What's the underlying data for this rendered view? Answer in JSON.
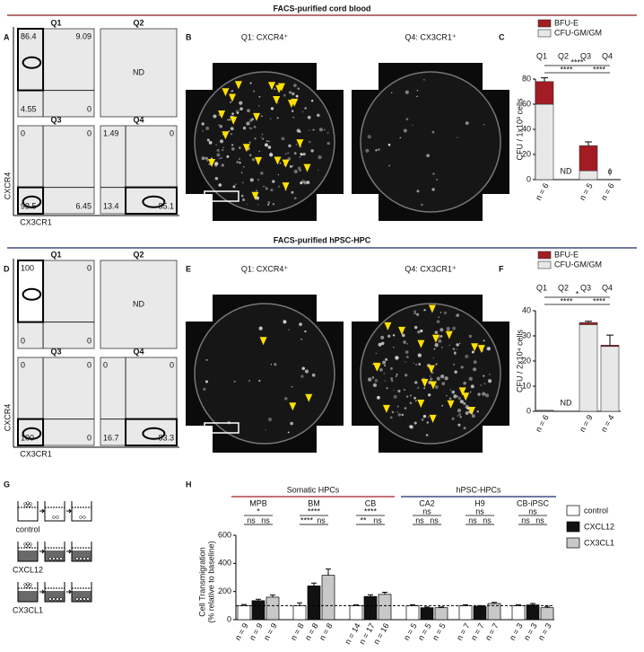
{
  "sections": [
    {
      "title": "FACS-purified cord blood",
      "color": "#8b1a1a"
    },
    {
      "title": "FACS-purified hPSC-HPC",
      "color": "#1f2a6b"
    }
  ],
  "panel_labels": [
    "A",
    "B",
    "C",
    "D",
    "E",
    "F",
    "G",
    "H"
  ],
  "facs": [
    {
      "y_label": "CXCR4",
      "x_label": "CX3CR1",
      "quadrants": [
        {
          "name": "Q1",
          "values": [
            86.4,
            9.09,
            4.55,
            0
          ]
        },
        {
          "name": "Q2",
          "note": "ND"
        },
        {
          "name": "Q3",
          "values": [
            0,
            0,
            93.5,
            6.45
          ]
        },
        {
          "name": "Q4",
          "values": [
            1.49,
            0,
            13.4,
            85.1
          ]
        }
      ]
    },
    {
      "y_label": "CXCR4",
      "x_label": "CX3CR1",
      "quadrants": [
        {
          "name": "Q1",
          "values": [
            100,
            0,
            0,
            0
          ]
        },
        {
          "name": "Q2",
          "note": "ND"
        },
        {
          "name": "Q3",
          "values": [
            0,
            0,
            100,
            0
          ]
        },
        {
          "name": "Q4",
          "values": [
            0,
            0,
            16.7,
            83.3
          ]
        }
      ]
    }
  ],
  "image_panels": [
    {
      "titles": [
        "Q1: CXCR4⁺",
        "Q4: CX3CR1⁺"
      ]
    },
    {
      "titles": [
        "Q1: CXCR4⁺",
        "Q4: CX3CR1⁺"
      ]
    }
  ],
  "cfu_charts": [
    {
      "type": "bar",
      "y_label": "CFU / 1x10³ cells",
      "categories": [
        "Q1",
        "Q2",
        "Q3",
        "Q4"
      ],
      "series": [
        {
          "name": "BFU-E",
          "color": "#a31c23",
          "values": [
            18,
            null,
            20,
            null
          ],
          "errors": [
            3,
            null,
            3,
            null
          ]
        },
        {
          "name": "CFU-GM/GM",
          "color": "#e8e8e8",
          "values": [
            60,
            null,
            7,
            null
          ]
        }
      ],
      "ylim": [
        0,
        80
      ],
      "yticks": [
        0,
        20,
        40,
        60,
        80
      ],
      "category_notes": [
        null,
        "ND",
        null,
        "ϕ"
      ],
      "significance": [
        "****",
        "****",
        "****"
      ],
      "n_labels": [
        "n = 6",
        null,
        "n = 5",
        "n = 6"
      ]
    },
    {
      "type": "bar",
      "y_label": "CFU / 2x10⁴ cells",
      "categories": [
        "Q1",
        "Q2",
        "Q3",
        "Q4"
      ],
      "series": [
        {
          "name": "BFU-E",
          "color": "#a31c23",
          "values": [
            0.1,
            null,
            0.8,
            0.5
          ],
          "errors": [
            null,
            null,
            0.5,
            4
          ]
        },
        {
          "name": "CFU-GM/GM",
          "color": "#e8e8e8",
          "values": [
            0.3,
            null,
            34.5,
            25.8
          ]
        }
      ],
      "ylim": [
        0,
        40
      ],
      "yticks": [
        0,
        10,
        20,
        30,
        40
      ],
      "category_notes": [
        null,
        "ND",
        null,
        null
      ],
      "significance": [
        "*",
        "****",
        "****"
      ],
      "n_labels": [
        "n = 6",
        null,
        "n = 9",
        "n = 4"
      ]
    }
  ],
  "conditions": [
    "control",
    "CXCL12",
    "CX3CL1"
  ],
  "transmigration": {
    "type": "bar",
    "y_label": [
      "Cell Transmigration",
      "(% relative to baseline)"
    ],
    "group_headers": [
      {
        "title": "Somatic HPCs",
        "color": "#a31c23"
      },
      {
        "title": "hPSC-HPCs",
        "color": "#1f2a6b"
      }
    ],
    "categories": [
      "MPB",
      "BM",
      "CB",
      "CA2",
      "H9",
      "CB-iPSC"
    ],
    "series": [
      {
        "name": "control",
        "color": "#ffffff",
        "values": [
          100,
          100,
          100,
          100,
          100,
          100
        ],
        "errors": [
          8,
          20,
          5,
          5,
          5,
          5
        ]
      },
      {
        "name": "CXCL12",
        "color": "#111111",
        "values": [
          135,
          240,
          165,
          85,
          95,
          105
        ],
        "errors": [
          10,
          20,
          12,
          5,
          5,
          10
        ]
      },
      {
        "name": "CX3CL1",
        "color": "#c8c8c8",
        "values": [
          160,
          315,
          180,
          85,
          115,
          85
        ],
        "errors": [
          15,
          45,
          15,
          5,
          8,
          10
        ]
      }
    ],
    "ylim": [
      0,
      600
    ],
    "yticks": [
      0,
      200,
      400,
      600
    ],
    "baseline": 100,
    "significance": [
      [
        "*",
        "ns",
        "ns"
      ],
      [
        "****",
        "****",
        "ns"
      ],
      [
        "****",
        "**",
        "ns"
      ],
      [
        "ns",
        "ns",
        "ns"
      ],
      [
        "ns",
        "ns",
        "ns"
      ],
      [
        "ns",
        "ns",
        "ns"
      ]
    ],
    "n_labels": [
      [
        "n = 9",
        "n = 9",
        "n = 9"
      ],
      [
        "n = 8",
        "n = 8",
        "n = 8"
      ],
      [
        "n = 14",
        "n = 17",
        "n = 16"
      ],
      [
        "n = 5",
        "n = 5",
        "n = 5"
      ],
      [
        "n = 7",
        "n = 7",
        "n = 7"
      ],
      [
        "n = 3",
        "n = 3",
        "n = 3"
      ]
    ]
  }
}
